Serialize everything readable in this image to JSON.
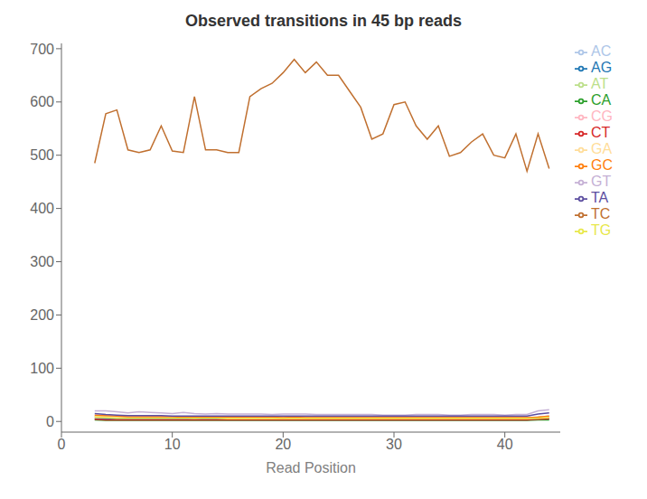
{
  "chart_data": {
    "type": "line",
    "title": "Observed transitions in 45 bp reads",
    "xlabel": "Read Position",
    "xlim": [
      0,
      45
    ],
    "ylim": [
      -20,
      710
    ],
    "xticks": [
      0,
      10,
      20,
      30,
      40
    ],
    "yticks": [
      0,
      100,
      200,
      300,
      400,
      500,
      600,
      700
    ],
    "grid": false,
    "legend": "right",
    "x": [
      3,
      4,
      5,
      6,
      7,
      8,
      9,
      10,
      11,
      12,
      13,
      14,
      15,
      16,
      17,
      18,
      19,
      20,
      21,
      22,
      23,
      24,
      25,
      26,
      27,
      28,
      29,
      30,
      31,
      32,
      33,
      34,
      35,
      36,
      37,
      38,
      39,
      40,
      41,
      42,
      43,
      44
    ],
    "series": [
      {
        "name": "AC",
        "color": "#aec6e8",
        "values": [
          8,
          7,
          6,
          5,
          6,
          7,
          6,
          5,
          6,
          5,
          6,
          7,
          5,
          6,
          5,
          5,
          6,
          5,
          5,
          5,
          5,
          5,
          5,
          5,
          5,
          4,
          5,
          5,
          5,
          5,
          5,
          5,
          5,
          5,
          5,
          5,
          5,
          5,
          5,
          6,
          8,
          10
        ]
      },
      {
        "name": "AG",
        "color": "#1f77b4",
        "values": [
          5,
          5,
          4,
          4,
          4,
          4,
          4,
          4,
          4,
          4,
          4,
          4,
          4,
          4,
          4,
          4,
          4,
          4,
          4,
          4,
          4,
          4,
          4,
          4,
          4,
          4,
          4,
          4,
          4,
          4,
          4,
          4,
          4,
          4,
          4,
          4,
          4,
          4,
          4,
          4,
          5,
          5
        ]
      },
      {
        "name": "AT",
        "color": "#bcdf8a",
        "values": [
          10,
          9,
          8,
          7,
          7,
          8,
          8,
          7,
          7,
          6,
          7,
          7,
          7,
          7,
          7,
          7,
          7,
          7,
          7,
          7,
          7,
          7,
          7,
          7,
          6,
          6,
          6,
          6,
          7,
          7,
          7,
          7,
          7,
          7,
          7,
          7,
          7,
          7,
          7,
          7,
          8,
          9
        ]
      },
      {
        "name": "CA",
        "color": "#2ca02c",
        "values": [
          3,
          2,
          2,
          2,
          2,
          2,
          2,
          2,
          2,
          2,
          2,
          2,
          2,
          2,
          2,
          2,
          2,
          2,
          2,
          2,
          2,
          2,
          2,
          2,
          2,
          2,
          2,
          2,
          2,
          2,
          2,
          2,
          2,
          2,
          2,
          2,
          2,
          2,
          2,
          2,
          3,
          3
        ]
      },
      {
        "name": "CG",
        "color": "#ffb6c1",
        "values": [
          8,
          8,
          8,
          7,
          8,
          8,
          7,
          8,
          8,
          7,
          8,
          8,
          7,
          7,
          8,
          7,
          7,
          7,
          7,
          7,
          7,
          7,
          7,
          7,
          7,
          7,
          7,
          7,
          7,
          7,
          7,
          7,
          7,
          7,
          7,
          7,
          7,
          7,
          7,
          7,
          8,
          9
        ]
      },
      {
        "name": "CT",
        "color": "#d62728",
        "values": [
          4,
          3,
          3,
          3,
          3,
          3,
          3,
          3,
          3,
          3,
          3,
          3,
          3,
          3,
          3,
          3,
          3,
          3,
          3,
          3,
          3,
          3,
          3,
          3,
          3,
          3,
          3,
          3,
          3,
          3,
          3,
          3,
          3,
          3,
          3,
          3,
          3,
          3,
          3,
          3,
          4,
          5
        ]
      },
      {
        "name": "GA",
        "color": "#ffdd99",
        "values": [
          10,
          9,
          8,
          8,
          8,
          8,
          8,
          8,
          8,
          7,
          8,
          7,
          7,
          7,
          7,
          7,
          7,
          7,
          7,
          7,
          7,
          7,
          7,
          7,
          7,
          7,
          7,
          7,
          7,
          7,
          7,
          7,
          7,
          7,
          7,
          7,
          7,
          7,
          7,
          7,
          8,
          9
        ]
      },
      {
        "name": "GC",
        "color": "#ff7f0e",
        "values": [
          12,
          11,
          10,
          9,
          9,
          9,
          9,
          9,
          8,
          8,
          8,
          8,
          8,
          8,
          8,
          8,
          8,
          7,
          8,
          7,
          7,
          7,
          7,
          7,
          7,
          7,
          7,
          7,
          7,
          7,
          7,
          7,
          7,
          7,
          7,
          7,
          7,
          7,
          7,
          7,
          8,
          10
        ]
      },
      {
        "name": "GT",
        "color": "#c5b0d5",
        "values": [
          20,
          20,
          18,
          16,
          18,
          17,
          16,
          15,
          17,
          15,
          14,
          15,
          14,
          14,
          14,
          14,
          13,
          14,
          14,
          14,
          13,
          13,
          13,
          13,
          13,
          13,
          12,
          12,
          12,
          13,
          13,
          13,
          12,
          12,
          13,
          13,
          13,
          12,
          13,
          13,
          20,
          22
        ]
      },
      {
        "name": "TA",
        "color": "#5c4ea0",
        "values": [
          15,
          13,
          12,
          11,
          11,
          11,
          11,
          10,
          10,
          10,
          10,
          10,
          10,
          10,
          10,
          10,
          10,
          10,
          10,
          10,
          10,
          10,
          10,
          10,
          10,
          10,
          10,
          10,
          10,
          10,
          10,
          10,
          10,
          10,
          10,
          10,
          10,
          10,
          10,
          10,
          14,
          16
        ]
      },
      {
        "name": "TC",
        "color": "#c07030",
        "values": [
          485,
          578,
          585,
          510,
          505,
          510,
          555,
          508,
          505,
          610,
          510,
          510,
          505,
          505,
          610,
          625,
          635,
          655,
          680,
          655,
          675,
          650,
          650,
          620,
          590,
          530,
          540,
          595,
          600,
          555,
          530,
          555,
          498,
          505,
          525,
          540,
          500,
          495,
          540,
          470,
          540,
          475
        ]
      },
      {
        "name": "TG",
        "color": "#e8e84a",
        "values": [
          8,
          7,
          6,
          6,
          6,
          6,
          6,
          6,
          6,
          6,
          6,
          6,
          5,
          5,
          5,
          5,
          5,
          5,
          5,
          5,
          5,
          5,
          5,
          5,
          5,
          5,
          5,
          5,
          5,
          5,
          5,
          5,
          5,
          5,
          5,
          5,
          5,
          5,
          5,
          5,
          6,
          7
        ]
      }
    ]
  }
}
